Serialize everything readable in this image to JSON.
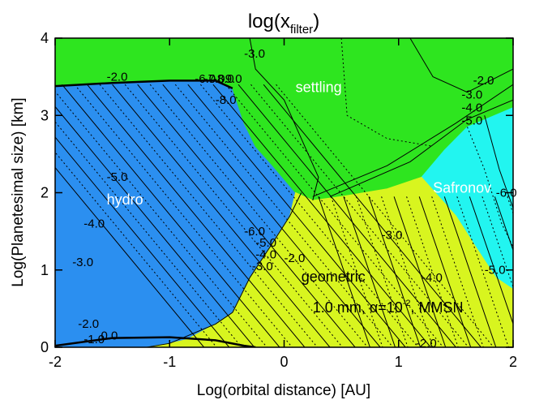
{
  "chart_data": {
    "type": "heatmap",
    "title": "log(x",
    "title_sub": "filter",
    "title_close": ")",
    "xlabel": "Log(orbital distance) [AU]",
    "ylabel": "Log(Planetesimal size) [km]",
    "xlim": [
      -2,
      2
    ],
    "ylim": [
      0,
      4
    ],
    "xticks": [
      -2,
      -1,
      0,
      1,
      2
    ],
    "yticks": [
      0,
      1,
      2,
      3,
      4
    ],
    "xtick_labels": [
      "-2",
      "-1",
      "0",
      "1",
      "2"
    ],
    "ytick_labels": [
      "0",
      "1",
      "2",
      "3",
      "4"
    ],
    "colors": {
      "hydro": "#2b8ff0",
      "settling": "#2ee51f",
      "geometric": "#d8f51f",
      "safronov": "#22f5f0"
    },
    "regions": [
      {
        "name": "hydro",
        "label": "hydro",
        "label_color": "#ffffff",
        "polygon": [
          [
            -2,
            0
          ],
          [
            -2,
            3.38
          ],
          [
            -1.5,
            3.42
          ],
          [
            -1,
            3.45
          ],
          [
            -0.6,
            3.45
          ],
          [
            -0.45,
            3.35
          ],
          [
            -0.35,
            2.9
          ],
          [
            -0.25,
            2.6
          ],
          [
            -0.1,
            2.35
          ],
          [
            0.1,
            2.0
          ],
          [
            0.05,
            1.7
          ],
          [
            -0.1,
            1.35
          ],
          [
            -0.3,
            0.9
          ],
          [
            -0.45,
            0.45
          ],
          [
            -0.6,
            0.3
          ],
          [
            -0.85,
            0.1
          ],
          [
            -1.0,
            0.05
          ],
          [
            -1.2,
            0.0
          ]
        ]
      },
      {
        "name": "settling",
        "label": "settling",
        "label_color": "#ffffff",
        "polygon": [
          [
            -2,
            3.38
          ],
          [
            -2,
            4
          ],
          [
            2,
            4
          ],
          [
            2,
            3.1
          ],
          [
            1.6,
            2.85
          ],
          [
            1.4,
            2.55
          ],
          [
            1.2,
            2.2
          ],
          [
            0.9,
            2.05
          ],
          [
            0.5,
            1.95
          ],
          [
            0.25,
            1.9
          ],
          [
            0.1,
            2.0
          ],
          [
            -0.1,
            2.35
          ],
          [
            -0.25,
            2.6
          ],
          [
            -0.35,
            2.9
          ],
          [
            -0.45,
            3.35
          ],
          [
            -0.6,
            3.45
          ],
          [
            -1,
            3.45
          ],
          [
            -1.5,
            3.42
          ]
        ]
      },
      {
        "name": "safronov",
        "label": "Safronov",
        "label_color": "#ffffff",
        "polygon": [
          [
            1.2,
            2.2
          ],
          [
            1.4,
            2.55
          ],
          [
            1.6,
            2.85
          ],
          [
            2,
            3.1
          ],
          [
            2,
            0.75
          ],
          [
            1.85,
            0.9
          ],
          [
            1.65,
            1.35
          ],
          [
            1.5,
            1.7
          ],
          [
            1.35,
            1.95
          ]
        ]
      },
      {
        "name": "geometric",
        "label": "geometric",
        "label_color": "#000000",
        "polygon": [
          [
            -1.2,
            0.0
          ],
          [
            -1.0,
            0.05
          ],
          [
            -0.85,
            0.1
          ],
          [
            -0.6,
            0.3
          ],
          [
            -0.45,
            0.45
          ],
          [
            -0.3,
            0.9
          ],
          [
            -0.1,
            1.35
          ],
          [
            0.05,
            1.7
          ],
          [
            0.1,
            2.0
          ],
          [
            0.25,
            1.9
          ],
          [
            0.5,
            1.95
          ],
          [
            0.9,
            2.05
          ],
          [
            1.2,
            2.2
          ],
          [
            1.35,
            1.95
          ],
          [
            1.5,
            1.7
          ],
          [
            1.65,
            1.35
          ],
          [
            1.85,
            0.9
          ],
          [
            2,
            0.75
          ],
          [
            2,
            0
          ]
        ]
      }
    ],
    "region_label_positions": [
      {
        "name": "hydro",
        "x": -1.55,
        "y": 1.85
      },
      {
        "name": "settling",
        "x": 0.1,
        "y": 3.3
      },
      {
        "name": "safronov",
        "x": 1.3,
        "y": 2.0
      },
      {
        "name": "geometric",
        "x": 0.15,
        "y": 0.85
      }
    ],
    "contour_labels": [
      {
        "text": "-2.0",
        "x": -1.55,
        "y": 3.45
      },
      {
        "text": "-6.0",
        "x": -0.78,
        "y": 3.42
      },
      {
        "text": "-7.0",
        "x": -0.7,
        "y": 3.42
      },
      {
        "text": "-8.0",
        "x": -0.62,
        "y": 3.42
      },
      {
        "text": "-9.0",
        "x": -0.55,
        "y": 3.42
      },
      {
        "text": "-8.0",
        "x": -0.6,
        "y": 3.15
      },
      {
        "text": "-3.0",
        "x": -0.35,
        "y": 3.75
      },
      {
        "text": "-2.0",
        "x": 1.65,
        "y": 3.4
      },
      {
        "text": "-3.0",
        "x": 1.55,
        "y": 3.22
      },
      {
        "text": "-4.0",
        "x": 1.55,
        "y": 3.05
      },
      {
        "text": "-5.0",
        "x": 1.55,
        "y": 2.88
      },
      {
        "text": "-6.0",
        "x": 1.85,
        "y": 1.95
      },
      {
        "text": "-5.0",
        "x": -1.55,
        "y": 2.15
      },
      {
        "text": "-4.0",
        "x": -1.75,
        "y": 1.55
      },
      {
        "text": "-3.0",
        "x": -1.85,
        "y": 1.05
      },
      {
        "text": "-2.0",
        "x": -1.8,
        "y": 0.25
      },
      {
        "text": "-1.0",
        "x": -1.75,
        "y": 0.05
      },
      {
        "text": "0.0",
        "x": -1.6,
        "y": 0.1
      },
      {
        "text": "-6.0",
        "x": -0.35,
        "y": 1.45
      },
      {
        "text": "-5.0",
        "x": -0.25,
        "y": 1.3
      },
      {
        "text": "-4.0",
        "x": -0.25,
        "y": 1.15
      },
      {
        "text": "-3.0",
        "x": -0.28,
        "y": 1.0
      },
      {
        "text": "-2.0",
        "x": 0.0,
        "y": 1.1
      },
      {
        "text": "-3.0",
        "x": 0.85,
        "y": 1.4
      },
      {
        "text": "-4.0",
        "x": 1.2,
        "y": 0.85
      },
      {
        "text": "-5.0",
        "x": 1.75,
        "y": 0.95
      },
      {
        "text": "-2.0",
        "x": 1.15,
        "y": 0.0
      }
    ],
    "annotation": {
      "prefix": "1.0 mm, ",
      "alpha": "α=10",
      "exp": "-2",
      "suffix": ", MMSN",
      "x": 0.25,
      "y": 0.45
    }
  }
}
